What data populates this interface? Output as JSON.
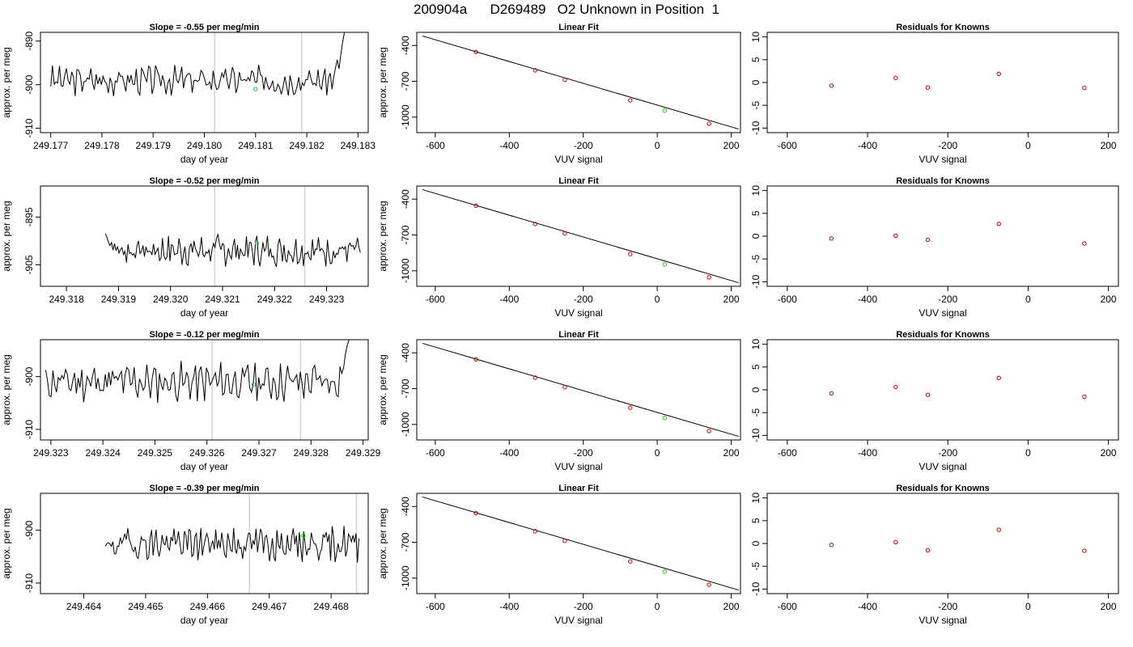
{
  "title": "200904a      D269489   O2 Unknown in Position  1",
  "labels": {
    "day_of_year": "day of year",
    "approx_per_meg": "approx. per meg",
    "vuv_signal": "VUV signal",
    "linear_fit": "Linear Fit",
    "residuals": "Residuals for Knowns"
  },
  "colors": {
    "trace": "#000000",
    "marker_line": "#d3d3d3",
    "unknown_point": "#00dd00",
    "known_point": "#cc0000",
    "fit_line": "#000000"
  },
  "chart_data": [
    {
      "type": "line",
      "row": 1,
      "title": "Slope =  -0.55  per meg/min",
      "xlabel": "day of year",
      "ylabel": "approx. per meg",
      "xlim": [
        249.1768,
        249.1832
      ],
      "ylim": [
        -911,
        -888
      ],
      "xticks": [
        "249.177",
        "249.178",
        "249.179",
        "249.180",
        "249.181",
        "249.182",
        "249.183"
      ],
      "yticks": [
        "-890",
        "-900",
        "-910"
      ],
      "markers_x": [
        249.1802,
        249.1819
      ],
      "unknown_point": [
        249.181,
        -901
      ],
      "trace": {
        "x_range": [
          249.177,
          249.1828
        ],
        "base": -899,
        "amplitude": 2.5,
        "seed": 3,
        "end_rise_to": -888
      }
    },
    {
      "type": "scatter",
      "row": 1,
      "title": "Linear Fit",
      "xlabel": "VUV signal",
      "ylabel": "approx. per meg",
      "xlim": [
        -650,
        225
      ],
      "ylim": [
        -1130,
        -290
      ],
      "xticks": [
        "-600",
        "-400",
        "-200",
        "0",
        "200"
      ],
      "yticks": [
        "-400",
        "-700",
        "-1000"
      ],
      "fit_line": [
        [
          -635,
          -320
        ],
        [
          220,
          -1100
        ]
      ],
      "known_points": [
        [
          -490,
          -455
        ],
        [
          -330,
          -608
        ],
        [
          -250,
          -688
        ],
        [
          -73,
          -860
        ],
        [
          140,
          -1055
        ]
      ],
      "unknown_point": [
        20,
        -946
      ]
    },
    {
      "type": "scatter",
      "row": 1,
      "title": "Residuals for Knowns",
      "xlabel": "VUV signal",
      "ylabel": "",
      "xlim": [
        -650,
        225
      ],
      "ylim": [
        -11,
        11
      ],
      "xticks": [
        "-600",
        "-400",
        "-200",
        "0",
        "200"
      ],
      "yticks": [
        "-10",
        "-5",
        "0",
        "5",
        "10"
      ],
      "points": [
        [
          -490,
          -0.7
        ],
        [
          -330,
          1.0
        ],
        [
          -250,
          -1.1
        ],
        [
          -73,
          1.9
        ],
        [
          140,
          -1.2
        ]
      ]
    },
    {
      "type": "line",
      "row": 2,
      "title": "Slope =  -0.52  per meg/min",
      "xlabel": "day of year",
      "ylabel": "approx. per meg",
      "xlim": [
        249.3175,
        249.3238
      ],
      "ylim": [
        -909.5,
        -888.5
      ],
      "xticks": [
        "249.318",
        "249.319",
        "249.320",
        "249.321",
        "249.322",
        "249.323"
      ],
      "yticks": [
        "-895",
        "-905"
      ],
      "markers_x": [
        249.32085,
        249.32258
      ],
      "unknown_point": [
        249.32166,
        -900.5
      ],
      "trace": {
        "x_range": [
          249.31875,
          249.32365
        ],
        "base": -902,
        "amplitude": 2.5,
        "seed": 7,
        "start_from": -888.5
      }
    },
    {
      "type": "scatter",
      "row": 2,
      "title": "Linear Fit",
      "xlabel": "VUV signal",
      "ylabel": "approx. per meg",
      "xlim": [
        -650,
        225
      ],
      "ylim": [
        -1130,
        -290
      ],
      "xticks": [
        "-600",
        "-400",
        "-200",
        "0",
        "200"
      ],
      "yticks": [
        "-400",
        "-700",
        "-1000"
      ],
      "fit_line": [
        [
          -635,
          -320
        ],
        [
          220,
          -1100
        ]
      ],
      "known_points": [
        [
          -490,
          -455
        ],
        [
          -330,
          -608
        ],
        [
          -250,
          -688
        ],
        [
          -73,
          -860
        ],
        [
          140,
          -1055
        ]
      ],
      "unknown_point": [
        20,
        -946
      ]
    },
    {
      "type": "scatter",
      "row": 2,
      "title": "Residuals for Knowns",
      "xlabel": "VUV signal",
      "ylabel": "",
      "xlim": [
        -650,
        225
      ],
      "ylim": [
        -11,
        11
      ],
      "xticks": [
        "-600",
        "-400",
        "-200",
        "0",
        "200"
      ],
      "yticks": [
        "-10",
        "-5",
        "0",
        "5",
        "10"
      ],
      "points": [
        [
          -490,
          -0.5
        ],
        [
          -330,
          0.1
        ],
        [
          -250,
          -0.8
        ],
        [
          -73,
          2.7
        ],
        [
          140,
          -1.6
        ]
      ]
    },
    {
      "type": "line",
      "row": 3,
      "title": "Slope =  -0.12  per meg/min",
      "xlabel": "day of year",
      "ylabel": "approx. per meg",
      "xlim": [
        249.3228,
        249.3291
      ],
      "ylim": [
        -912,
        -893
      ],
      "xticks": [
        "249.323",
        "249.324",
        "249.325",
        "249.326",
        "249.327",
        "249.328",
        "249.329"
      ],
      "yticks": [
        "-900",
        "-910"
      ],
      "markers_x": [
        249.3261,
        249.3278
      ],
      "unknown_point": [
        249.3269,
        -901.5
      ],
      "trace": {
        "x_range": [
          249.3229,
          249.3288
        ],
        "base": -901,
        "amplitude": 2.8,
        "seed": 11,
        "end_rise_to": -893
      }
    },
    {
      "type": "scatter",
      "row": 3,
      "title": "Linear Fit",
      "xlabel": "VUV signal",
      "ylabel": "approx. per meg",
      "xlim": [
        -650,
        225
      ],
      "ylim": [
        -1130,
        -290
      ],
      "xticks": [
        "-600",
        "-400",
        "-200",
        "0",
        "200"
      ],
      "yticks": [
        "-400",
        "-700",
        "-1000"
      ],
      "fit_line": [
        [
          -635,
          -320
        ],
        [
          220,
          -1100
        ]
      ],
      "known_points": [
        [
          -490,
          -455
        ],
        [
          -330,
          -608
        ],
        [
          -250,
          -688
        ],
        [
          -73,
          -860
        ],
        [
          140,
          -1055
        ]
      ],
      "unknown_point": [
        20,
        -946
      ]
    },
    {
      "type": "scatter",
      "row": 3,
      "title": "Residuals for Knowns",
      "xlabel": "VUV signal",
      "ylabel": "",
      "xlim": [
        -650,
        225
      ],
      "ylim": [
        -11,
        11
      ],
      "xticks": [
        "-600",
        "-400",
        "-200",
        "0",
        "200"
      ],
      "yticks": [
        "-10",
        "-5",
        "0",
        "5",
        "10"
      ],
      "points": [
        [
          -490,
          -0.8
        ],
        [
          -330,
          0.6
        ],
        [
          -250,
          -1.1
        ],
        [
          -73,
          2.6
        ],
        [
          140,
          -1.5
        ]
      ]
    },
    {
      "type": "line",
      "row": 4,
      "title": "Slope =  -0.39  per meg/min",
      "xlabel": "day of year",
      "ylabel": "approx. per meg",
      "xlim": [
        249.4633,
        249.4686
      ],
      "ylim": [
        -912,
        -893
      ],
      "xticks": [
        "249.464",
        "249.465",
        "249.466",
        "249.467",
        "249.468"
      ],
      "yticks": [
        "-900",
        "-910"
      ],
      "markers_x": [
        249.46668,
        249.46841
      ],
      "unknown_point": [
        249.46755,
        -901
      ],
      "trace": {
        "x_range": [
          249.46435,
          249.46845
        ],
        "base": -902.5,
        "amplitude": 2.5,
        "seed": 19,
        "start_from": -893
      }
    },
    {
      "type": "scatter",
      "row": 4,
      "title": "Linear Fit",
      "xlabel": "VUV signal",
      "ylabel": "approx. per meg",
      "xlim": [
        -650,
        225
      ],
      "ylim": [
        -1130,
        -290
      ],
      "xticks": [
        "-600",
        "-400",
        "-200",
        "0",
        "200"
      ],
      "yticks": [
        "-400",
        "-700",
        "-1000"
      ],
      "fit_line": [
        [
          -635,
          -320
        ],
        [
          220,
          -1100
        ]
      ],
      "known_points": [
        [
          -490,
          -455
        ],
        [
          -330,
          -608
        ],
        [
          -250,
          -688
        ],
        [
          -73,
          -860
        ],
        [
          140,
          -1055
        ]
      ],
      "unknown_point": [
        20,
        -946
      ]
    },
    {
      "type": "scatter",
      "row": 4,
      "title": "Residuals for Knowns",
      "xlabel": "VUV signal",
      "ylabel": "",
      "xlim": [
        -650,
        225
      ],
      "ylim": [
        -11,
        11
      ],
      "xticks": [
        "-600",
        "-400",
        "-200",
        "0",
        "200"
      ],
      "yticks": [
        "-10",
        "-5",
        "0",
        "5",
        "10"
      ],
      "points": [
        [
          -490,
          -0.3
        ],
        [
          -330,
          0.3
        ],
        [
          -250,
          -1.5
        ],
        [
          -73,
          3.0
        ],
        [
          140,
          -1.6
        ]
      ]
    }
  ]
}
